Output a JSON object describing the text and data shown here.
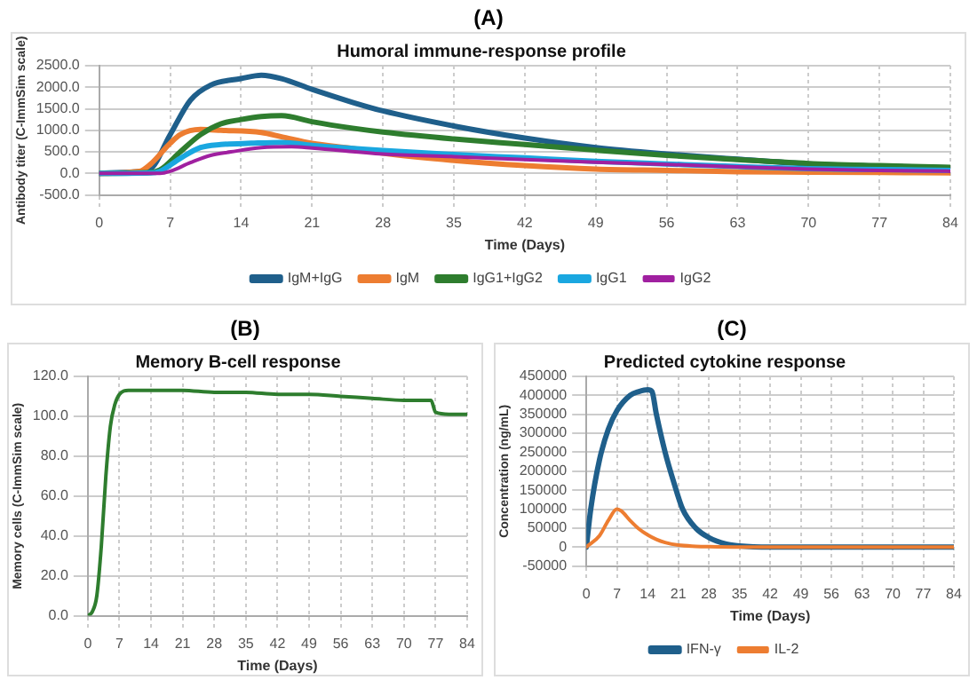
{
  "chart_data": [
    {
      "type": "line",
      "annotations": [
        "(A)"
      ],
      "title": "Humoral immune-response profile",
      "xlabel": "Time (Days)",
      "ylabel": "Antibody titer (C-ImmSim scale)",
      "xlim": [
        0,
        84
      ],
      "xticks": [
        0,
        7,
        14,
        21,
        28,
        35,
        42,
        49,
        56,
        63,
        70,
        77,
        84
      ],
      "ylim": [
        -500,
        2500
      ],
      "yticks": [
        {
          "value": -500,
          "label": "-500.0"
        },
        {
          "value": 0,
          "label": "0.0"
        },
        {
          "value": 500,
          "label": "500.0"
        },
        {
          "value": 1000,
          "label": "1000.0"
        },
        {
          "value": 1500,
          "label": "1500.0"
        },
        {
          "value": 2000,
          "label": "2000.0"
        },
        {
          "value": 2500,
          "label": "2500.0"
        }
      ],
      "grid": true,
      "legend": "bottom",
      "marker": "none",
      "line_style": "solid",
      "series": [
        {
          "name": "IgM+IgG",
          "color": "#1f5f8b",
          "x": [
            0,
            3,
            5,
            7,
            9,
            11,
            14,
            16,
            18,
            21,
            25,
            28,
            35,
            42,
            49,
            56,
            63,
            70,
            77,
            84
          ],
          "values": [
            0,
            30,
            100,
            900,
            1700,
            2050,
            2200,
            2280,
            2200,
            1950,
            1650,
            1450,
            1100,
            820,
            600,
            450,
            330,
            220,
            170,
            130
          ]
        },
        {
          "name": "IgM",
          "color": "#ed7d31",
          "x": [
            0,
            4,
            5,
            7,
            8,
            10,
            12,
            16,
            18,
            21,
            25,
            28,
            35,
            42,
            49,
            56,
            63,
            70,
            77,
            84
          ],
          "values": [
            0,
            50,
            200,
            700,
            900,
            1020,
            1000,
            950,
            850,
            700,
            580,
            470,
            300,
            180,
            100,
            70,
            40,
            30,
            20,
            10
          ]
        },
        {
          "name": "IgG1+IgG2",
          "color": "#2e7d2e",
          "x": [
            0,
            5,
            6,
            8,
            10,
            12,
            14,
            16,
            18,
            21,
            25,
            28,
            35,
            42,
            49,
            56,
            63,
            70,
            77,
            84
          ],
          "values": [
            0,
            20,
            80,
            500,
            900,
            1150,
            1250,
            1320,
            1340,
            1200,
            1050,
            960,
            800,
            670,
            540,
            420,
            320,
            230,
            180,
            140
          ]
        },
        {
          "name": "IgG1",
          "color": "#1aa7e0",
          "x": [
            0,
            5,
            6,
            8,
            10,
            12,
            15,
            18,
            21,
            28,
            35,
            42,
            49,
            56,
            63,
            70,
            77,
            84
          ],
          "values": [
            0,
            10,
            50,
            350,
            600,
            670,
            700,
            720,
            650,
            530,
            440,
            360,
            280,
            220,
            160,
            110,
            90,
            70
          ]
        },
        {
          "name": "IgG2",
          "color": "#a020a0",
          "x": [
            0,
            6,
            7,
            9,
            11,
            13,
            16,
            19,
            21,
            28,
            35,
            42,
            49,
            56,
            63,
            70,
            77,
            84
          ],
          "values": [
            0,
            0,
            50,
            250,
            420,
            500,
            600,
            620,
            590,
            450,
            390,
            320,
            260,
            210,
            150,
            100,
            70,
            50
          ]
        }
      ]
    },
    {
      "type": "line",
      "annotations": [
        "(B)"
      ],
      "title": "Memory B-cell response",
      "xlabel": "Time (Days)",
      "ylabel": "Memory cells (C-ImmSim scale)",
      "xlim": [
        0,
        84
      ],
      "xticks": [
        0,
        7,
        14,
        21,
        28,
        35,
        42,
        49,
        56,
        63,
        70,
        77,
        84
      ],
      "ylim": [
        0,
        120
      ],
      "yticks": [
        {
          "value": 0,
          "label": "0.0"
        },
        {
          "value": 20,
          "label": "20.0"
        },
        {
          "value": 40,
          "label": "40.0"
        },
        {
          "value": 60,
          "label": "60.0"
        },
        {
          "value": 80,
          "label": "80.0"
        },
        {
          "value": 100,
          "label": "100.0"
        },
        {
          "value": 120,
          "label": "120.0"
        }
      ],
      "grid": true,
      "legend": false,
      "marker": "none",
      "line_style": "solid",
      "series": [
        {
          "color": "#2e7d2e",
          "x": [
            0,
            1,
            2,
            3,
            4,
            5,
            6,
            7,
            9,
            14,
            21,
            28,
            35,
            42,
            49,
            56,
            63,
            70,
            76,
            77,
            80,
            84
          ],
          "values": [
            0,
            2,
            10,
            35,
            70,
            95,
            106,
            111,
            113,
            113,
            113,
            112,
            112,
            111,
            111,
            110,
            109,
            108,
            108,
            102,
            101,
            101
          ]
        }
      ]
    },
    {
      "type": "line",
      "annotations": [
        "(C)"
      ],
      "title": "Predicted cytokine response",
      "xlabel": "Time (Days)",
      "ylabel": "Concentration (ng/mL)",
      "xlim": [
        0,
        84
      ],
      "xticks": [
        0,
        7,
        14,
        21,
        28,
        35,
        42,
        49,
        56,
        63,
        70,
        77,
        84
      ],
      "ylim": [
        -50000,
        450000
      ],
      "yticks": [
        -50000,
        0,
        50000,
        100000,
        150000,
        200000,
        250000,
        300000,
        350000,
        400000,
        450000
      ],
      "grid": true,
      "legend": "bottom",
      "marker": "none",
      "line_style": "solid",
      "series": [
        {
          "name": "IFN-γ",
          "color": "#1f5f8b",
          "x": [
            0,
            1,
            3,
            5,
            7,
            10,
            12,
            14,
            15,
            16,
            18,
            20,
            22,
            25,
            28,
            32,
            35,
            42,
            49,
            84
          ],
          "values": [
            0,
            100000,
            230000,
            310000,
            360000,
            400000,
            410000,
            415000,
            410000,
            350000,
            250000,
            170000,
            100000,
            50000,
            25000,
            8000,
            3000,
            0,
            0,
            0
          ]
        },
        {
          "name": "IL-2",
          "color": "#ed7d31",
          "x": [
            0,
            3,
            5,
            7,
            8,
            10,
            12,
            14,
            16,
            18,
            21,
            25,
            28,
            35,
            84
          ],
          "values": [
            0,
            30000,
            70000,
            100000,
            95000,
            70000,
            48000,
            32000,
            20000,
            12000,
            5000,
            2000,
            1000,
            0,
            0
          ]
        }
      ]
    }
  ]
}
